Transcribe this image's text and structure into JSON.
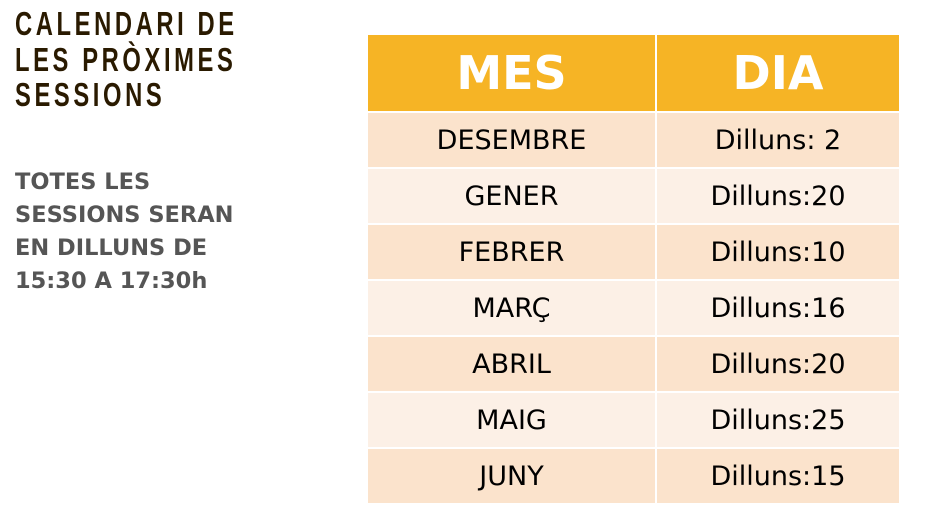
{
  "title_lines": [
    "CALENDARI DE",
    "LES PRÒXIMES",
    "SESSIONS"
  ],
  "note_lines": [
    "TOTES LES",
    "SESSIONS SERAN",
    "EN DILLUNS DE",
    "15:30 A 17:30h"
  ],
  "table": {
    "headers": [
      "MES",
      "DIA"
    ],
    "rows": [
      [
        "DESEMBRE",
        "Dilluns: 2"
      ],
      [
        "GENER",
        "Dilluns:20"
      ],
      [
        "FEBRER",
        "Dilluns:10"
      ],
      [
        "MARÇ",
        "Dilluns:16"
      ],
      [
        "ABRIL",
        "Dilluns:20"
      ],
      [
        "MAIG",
        "Dilluns:25"
      ],
      [
        "JUNY",
        "Dilluns:15"
      ]
    ]
  },
  "colors": {
    "header": "#f6b425",
    "row_odd": "#fbe3cc",
    "row_even": "#fcf0e6",
    "title": "#2a1a00",
    "note": "#555555"
  }
}
